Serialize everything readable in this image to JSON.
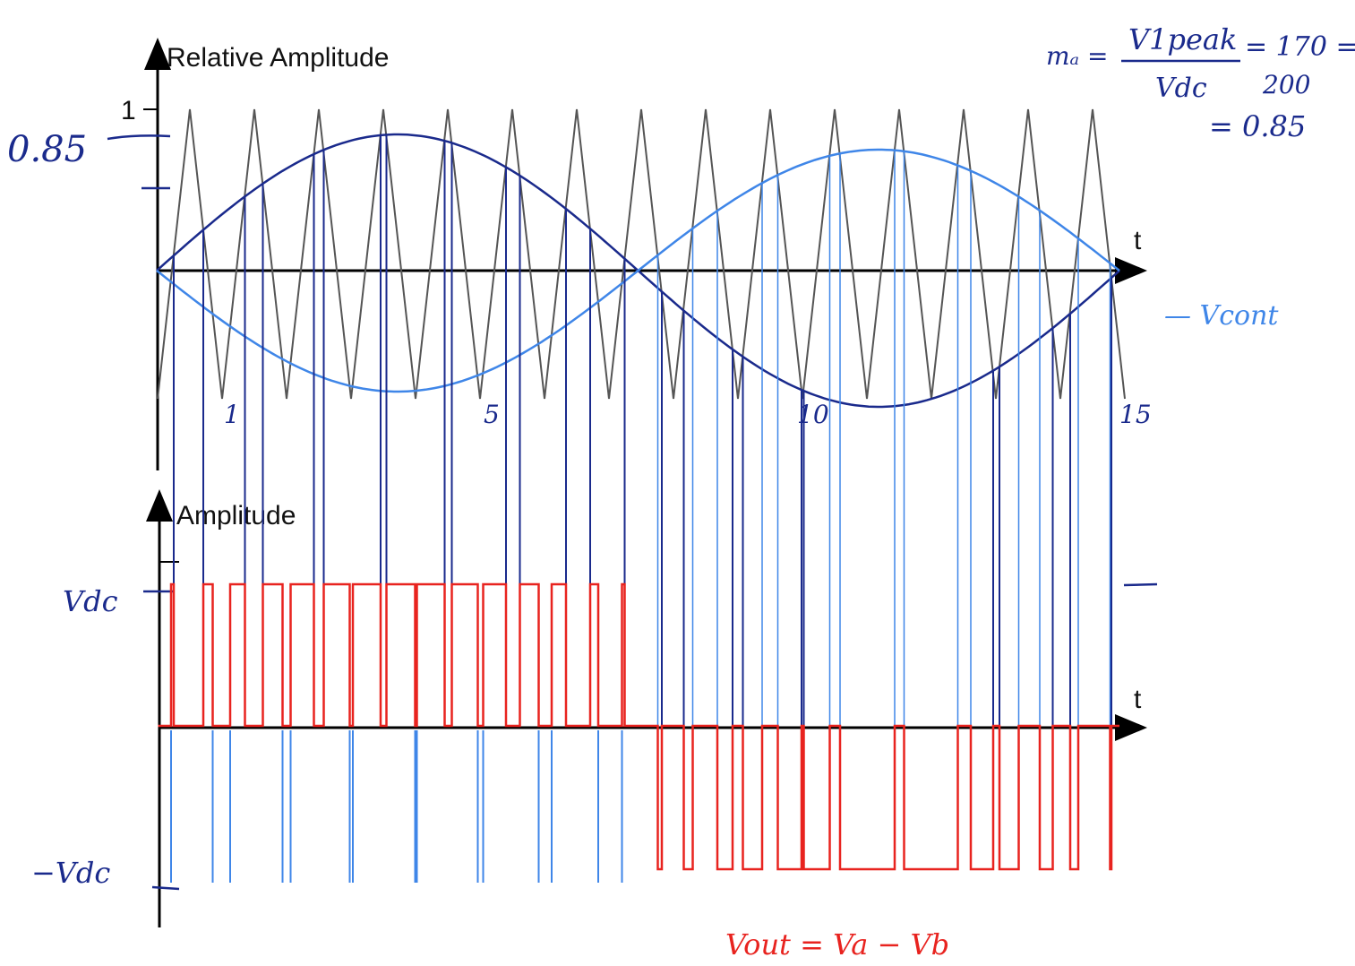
{
  "top_plot": {
    "axis_label": "Relative Amplitude",
    "tick_label": "1",
    "time_label": "t"
  },
  "bottom_plot": {
    "axis_label": "Amplitude",
    "time_label": "t"
  },
  "annotations": {
    "ma_lhs": "mₐ =",
    "ma_numerator": "V1peak",
    "ma_denominator": "Vdc",
    "ma_ratio_numerator": "= 170 =",
    "ma_ratio_denominator": "200",
    "ma_result": "= 0.85",
    "level_085": "0.85",
    "time_marks": [
      "1",
      "5",
      "10",
      "15"
    ],
    "vdc": "Vdc",
    "minus_vdc": "−Vdc",
    "vout": "Vout = Va − Vb",
    "vcont": "— Vcont"
  }
}
